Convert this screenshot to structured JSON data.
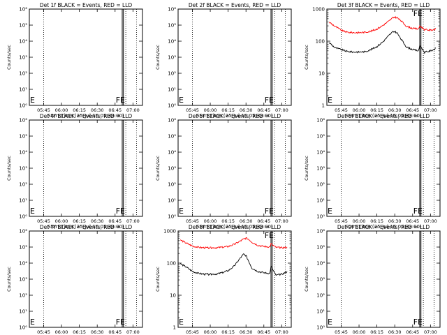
{
  "xlabel": "Start Time (25-Jul-16 05:33:00)",
  "ylabel": "Counts/sec",
  "colors": {
    "events": "#000000",
    "lld": "#ff0000",
    "axes": "#000000"
  },
  "x_range_hours": [
    "05:33",
    "07:08"
  ],
  "x_ticks": [
    "05:45",
    "06:00",
    "06:15",
    "06:30",
    "06:45",
    "07:00"
  ],
  "markers": {
    "dotted_times": [
      "05:45",
      "06:54",
      "07:03"
    ],
    "solid_times": [
      "06:51",
      "06:52"
    ]
  },
  "fe_label": "FE",
  "e_label": "E",
  "chart_data": [
    {
      "type": "line",
      "title": "Det 1f BLACK = Events, RED = LLD",
      "scale": "linear",
      "y_range": [
        1,
        1000000
      ],
      "y_ticks": [
        "10⁰",
        "10¹",
        "10²",
        "10³",
        "10⁴",
        "10⁵",
        "10⁶"
      ],
      "series": []
    },
    {
      "type": "line",
      "title": "Det 2f BLACK = Events, RED = LLD",
      "scale": "linear",
      "y_range": [
        1,
        1000000
      ],
      "y_ticks": [
        "10⁰",
        "10¹",
        "10²",
        "10³",
        "10⁴",
        "10⁵",
        "10⁶"
      ],
      "series": []
    },
    {
      "type": "line",
      "title": "Det 3f BLACK = Events, RED = LLD",
      "scale": "log",
      "y_range": [
        1,
        1000
      ],
      "y_ticks": [
        "1",
        "10",
        "100",
        "1000"
      ],
      "series": [
        {
          "name": "LLD",
          "color": "#ff0000",
          "points": [
            [
              "05:35",
              390
            ],
            [
              "05:40",
              290
            ],
            [
              "05:45",
              220
            ],
            [
              "05:50",
              190
            ],
            [
              "05:55",
              185
            ],
            [
              "06:00",
              185
            ],
            [
              "06:05",
              190
            ],
            [
              "06:10",
              205
            ],
            [
              "06:15",
              240
            ],
            [
              "06:20",
              310
            ],
            [
              "06:25",
              420
            ],
            [
              "06:28",
              520
            ],
            [
              "06:30",
              560
            ],
            [
              "06:32",
              540
            ],
            [
              "06:35",
              440
            ],
            [
              "06:40",
              290
            ],
            [
              "06:45",
              250
            ],
            [
              "06:50",
              240
            ],
            [
              "06:51",
              300
            ],
            [
              "06:55",
              230
            ],
            [
              "07:00",
              220
            ],
            [
              "07:05",
              240
            ]
          ]
        },
        {
          "name": "Events",
          "color": "#000000",
          "points": [
            [
              "05:35",
              90
            ],
            [
              "05:40",
              62
            ],
            [
              "05:45",
              55
            ],
            [
              "05:50",
              48
            ],
            [
              "05:55",
              46
            ],
            [
              "06:00",
              46
            ],
            [
              "06:05",
              47
            ],
            [
              "06:10",
              55
            ],
            [
              "06:15",
              68
            ],
            [
              "06:20",
              95
            ],
            [
              "06:25",
              150
            ],
            [
              "06:28",
              190
            ],
            [
              "06:30",
              200
            ],
            [
              "06:32",
              180
            ],
            [
              "06:35",
              120
            ],
            [
              "06:40",
              65
            ],
            [
              "06:45",
              55
            ],
            [
              "06:50",
              50
            ],
            [
              "06:51",
              75
            ],
            [
              "06:55",
              45
            ],
            [
              "07:00",
              50
            ],
            [
              "07:05",
              60
            ]
          ]
        }
      ]
    },
    {
      "type": "line",
      "title": "Det 4f BLACK = Events, RED = LLD",
      "scale": "linear",
      "y_range": [
        1,
        1000000
      ],
      "y_ticks": [
        "10⁰",
        "10¹",
        "10²",
        "10³",
        "10⁴",
        "10⁵",
        "10⁶"
      ],
      "series": []
    },
    {
      "type": "line",
      "title": "Det 5f BLACK = Events, RED = LLD",
      "scale": "linear",
      "y_range": [
        1,
        1000000
      ],
      "y_ticks": [
        "10⁰",
        "10¹",
        "10²",
        "10³",
        "10⁴",
        "10⁵",
        "10⁶"
      ],
      "series": []
    },
    {
      "type": "line",
      "title": "Det 6f BLACK = Events, RED = LLD",
      "scale": "linear",
      "y_range": [
        1,
        1000000
      ],
      "y_ticks": [
        "10⁰",
        "10¹",
        "10²",
        "10³",
        "10⁴",
        "10⁵",
        "10⁶"
      ],
      "series": []
    },
    {
      "type": "line",
      "title": "Det 7f BLACK = Events, RED = LLD",
      "scale": "linear",
      "y_range": [
        1,
        1000000
      ],
      "y_ticks": [
        "10⁰",
        "10¹",
        "10²",
        "10³",
        "10⁴",
        "10⁵",
        "10⁶"
      ],
      "series": []
    },
    {
      "type": "line",
      "title": "Det 8f BLACK = Events, RED = LLD",
      "scale": "log",
      "y_range": [
        1,
        1000
      ],
      "y_ticks": [
        "1",
        "10",
        "100",
        "1000"
      ],
      "series": [
        {
          "name": "LLD",
          "color": "#ff0000",
          "points": [
            [
              "05:35",
              520
            ],
            [
              "05:40",
              420
            ],
            [
              "05:45",
              340
            ],
            [
              "05:50",
              310
            ],
            [
              "05:55",
              300
            ],
            [
              "06:00",
              300
            ],
            [
              "06:05",
              305
            ],
            [
              "06:10",
              310
            ],
            [
              "06:15",
              330
            ],
            [
              "06:20",
              380
            ],
            [
              "06:25",
              480
            ],
            [
              "06:28",
              560
            ],
            [
              "06:30",
              600
            ],
            [
              "06:32",
              560
            ],
            [
              "06:35",
              450
            ],
            [
              "06:40",
              360
            ],
            [
              "06:45",
              330
            ],
            [
              "06:50",
              320
            ],
            [
              "06:51",
              400
            ],
            [
              "06:55",
              310
            ],
            [
              "07:00",
              300
            ],
            [
              "07:05",
              310
            ]
          ]
        },
        {
          "name": "Events",
          "color": "#000000",
          "points": [
            [
              "05:35",
              95
            ],
            [
              "05:40",
              75
            ],
            [
              "05:45",
              55
            ],
            [
              "05:50",
              48
            ],
            [
              "05:55",
              45
            ],
            [
              "06:00",
              45
            ],
            [
              "06:05",
              46
            ],
            [
              "06:10",
              50
            ],
            [
              "06:15",
              58
            ],
            [
              "06:20",
              80
            ],
            [
              "06:25",
              140
            ],
            [
              "06:28",
              190
            ],
            [
              "06:30",
              170
            ],
            [
              "06:32",
              120
            ],
            [
              "06:35",
              70
            ],
            [
              "06:40",
              55
            ],
            [
              "06:45",
              50
            ],
            [
              "06:50",
              48
            ],
            [
              "06:51",
              80
            ],
            [
              "06:55",
              42
            ],
            [
              "07:00",
              45
            ],
            [
              "07:05",
              55
            ]
          ]
        }
      ]
    },
    {
      "type": "line",
      "title": "Det 9f BLACK = Events, RED = LLD",
      "scale": "linear",
      "y_range": [
        1,
        1000000
      ],
      "y_ticks": [
        "10⁰",
        "10¹",
        "10²",
        "10³",
        "10⁴",
        "10⁵",
        "10⁶"
      ],
      "series": []
    }
  ]
}
